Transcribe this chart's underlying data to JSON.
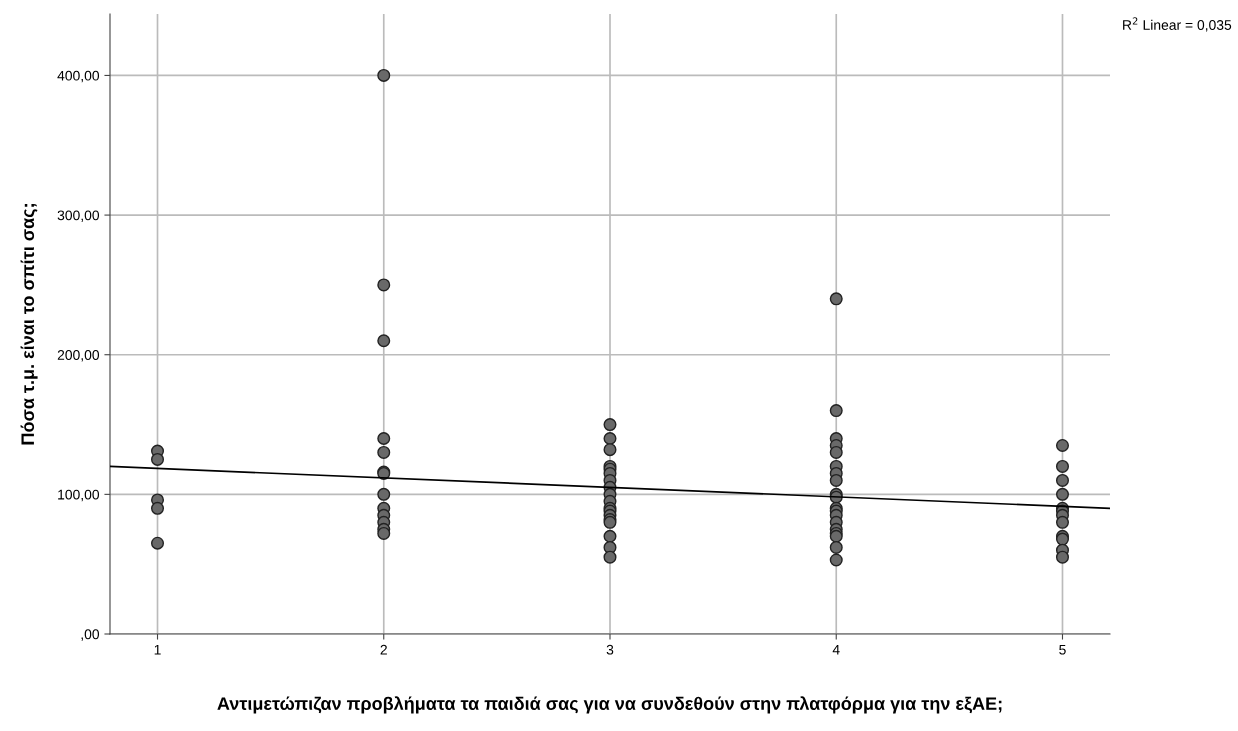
{
  "chart_data": {
    "type": "scatter",
    "xlabel": "Αντιμετώπιζαν προβλήματα τα παιδιά σας για να συνδεθούν στην πλατφόρμα για την εξΑΕ;",
    "ylabel": "Πόσα τ.μ. είναι το σπίτι σας;",
    "annotations": [
      "R$^{2}$ Linear = 0,035"
    ],
    "xlim": [
      0.79,
      5.21
    ],
    "xticks": [
      1,
      2,
      3,
      4,
      5
    ],
    "ylim": [
      0,
      444
    ],
    "yticks": [
      {
        "value": 0,
        "label": ",00"
      },
      {
        "value": 100,
        "label": "100,00"
      },
      {
        "value": 200,
        "label": "200,00"
      },
      {
        "value": 300,
        "label": "300,00"
      },
      {
        "value": 400,
        "label": "400,00"
      }
    ],
    "grid": true,
    "series": [
      {
        "marker": "circle",
        "color": "#696969",
        "x": [
          1,
          1,
          1,
          1,
          1,
          2,
          2,
          2,
          2,
          2,
          2,
          2,
          2,
          2,
          2,
          2,
          2,
          2,
          3,
          3,
          3,
          3,
          3,
          3,
          3,
          3,
          3,
          3,
          3,
          3,
          3,
          3,
          3,
          3,
          3,
          3,
          4,
          4,
          4,
          4,
          4,
          4,
          4,
          4,
          4,
          4,
          4,
          4,
          4,
          4,
          4,
          4,
          4,
          4,
          4,
          5,
          5,
          5,
          5,
          5,
          5,
          5,
          5,
          5,
          5,
          5,
          5
        ],
        "values": [
          131,
          125,
          96,
          90,
          65,
          400,
          250,
          210,
          140,
          130,
          116,
          115,
          100,
          90,
          85,
          80,
          75,
          72,
          150,
          140,
          132,
          120,
          118,
          115,
          110,
          105,
          100,
          95,
          90,
          88,
          85,
          82,
          80,
          70,
          62,
          55,
          240,
          160,
          140,
          135,
          130,
          120,
          115,
          110,
          100,
          98,
          90,
          88,
          85,
          80,
          75,
          72,
          70,
          62,
          53,
          135,
          120,
          110,
          100,
          90,
          88,
          85,
          80,
          70,
          68,
          60,
          55
        ]
      },
      {
        "type": "line",
        "marker": "none",
        "color": "#000000",
        "x": [
          0.79,
          5.21
        ],
        "values": [
          120,
          90
        ]
      }
    ]
  }
}
